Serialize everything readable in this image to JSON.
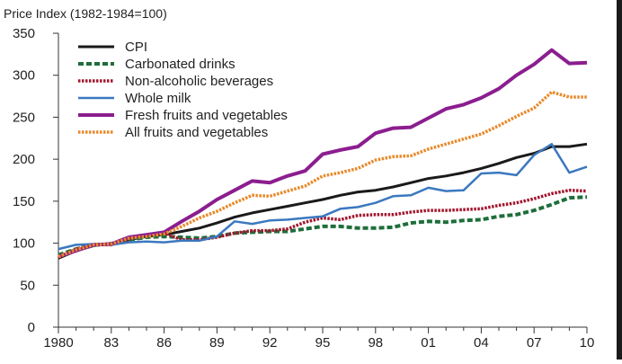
{
  "chart_data": {
    "type": "line",
    "ylabel": "Price Index (1982-1984=100)",
    "ylim": [
      0,
      350
    ],
    "yticks": [
      0,
      50,
      100,
      150,
      200,
      250,
      300,
      350
    ],
    "xlim": [
      1980,
      2010
    ],
    "xticks": [
      {
        "value": 1980,
        "label": "1980"
      },
      {
        "value": 1983,
        "label": "83"
      },
      {
        "value": 1986,
        "label": "86"
      },
      {
        "value": 1989,
        "label": "89"
      },
      {
        "value": 1992,
        "label": "92"
      },
      {
        "value": 1995,
        "label": "95"
      },
      {
        "value": 1998,
        "label": "98"
      },
      {
        "value": 2001,
        "label": "01"
      },
      {
        "value": 2004,
        "label": "04"
      },
      {
        "value": 2007,
        "label": "07"
      },
      {
        "value": 2010,
        "label": "10"
      }
    ],
    "grid": false,
    "legend_position": "top-left",
    "x": [
      1980,
      1981,
      1982,
      1983,
      1984,
      1985,
      1986,
      1987,
      1988,
      1989,
      1990,
      1991,
      1992,
      1993,
      1994,
      1995,
      1996,
      1997,
      1998,
      1999,
      2000,
      2001,
      2002,
      2003,
      2004,
      2005,
      2006,
      2007,
      2008,
      2009,
      2010
    ],
    "series": [
      {
        "name": "CPI",
        "color": "#1a1a1a",
        "style": "solid",
        "values": [
          82,
          91,
          97,
          100,
          104,
          108,
          110,
          114,
          118,
          124,
          131,
          136,
          140,
          144,
          148,
          152,
          157,
          161,
          163,
          167,
          172,
          177,
          180,
          184,
          189,
          195,
          202,
          207,
          215,
          215,
          218
        ]
      },
      {
        "name": "Carbonated drinks",
        "color": "#1e6e3a",
        "style": "dashed",
        "values": [
          86,
          93,
          98,
          99,
          104,
          107,
          108,
          107,
          106,
          108,
          112,
          113,
          114,
          114,
          117,
          120,
          120,
          118,
          118,
          119,
          124,
          126,
          125,
          127,
          128,
          132,
          134,
          139,
          146,
          154,
          155
        ]
      },
      {
        "name": "Non-alcoholic beverages",
        "color": "#a3162d",
        "style": "dotted",
        "values": [
          83,
          93,
          98,
          98,
          105,
          110,
          112,
          104,
          104,
          107,
          112,
          115,
          115,
          117,
          125,
          130,
          128,
          133,
          134,
          134,
          137,
          139,
          139,
          140,
          141,
          145,
          148,
          153,
          159,
          163,
          162
        ]
      },
      {
        "name": "Whole milk",
        "color": "#3b78bf",
        "style": "solid",
        "values": [
          93,
          98,
          99,
          98,
          101,
          102,
          101,
          103,
          103,
          108,
          126,
          123,
          127,
          128,
          130,
          132,
          141,
          143,
          148,
          156,
          157,
          166,
          162,
          163,
          183,
          184,
          181,
          205,
          218,
          184,
          191
        ]
      },
      {
        "name": "Fresh fruits and vegetables",
        "color": "#8b1e8f",
        "style": "solid",
        "values": [
          84,
          91,
          98,
          99,
          107,
          110,
          113,
          126,
          138,
          152,
          163,
          174,
          172,
          180,
          186,
          206,
          211,
          215,
          231,
          237,
          238,
          249,
          260,
          265,
          273,
          284,
          300,
          313,
          330,
          314,
          315
        ]
      },
      {
        "name": "All fruits and vegetables",
        "color": "#e8892a",
        "style": "dotted",
        "values": [
          84,
          92,
          98,
          99,
          106,
          108,
          111,
          120,
          130,
          138,
          148,
          157,
          156,
          162,
          168,
          180,
          184,
          189,
          199,
          203,
          204,
          212,
          218,
          224,
          230,
          240,
          251,
          261,
          280,
          274,
          274
        ]
      }
    ]
  }
}
